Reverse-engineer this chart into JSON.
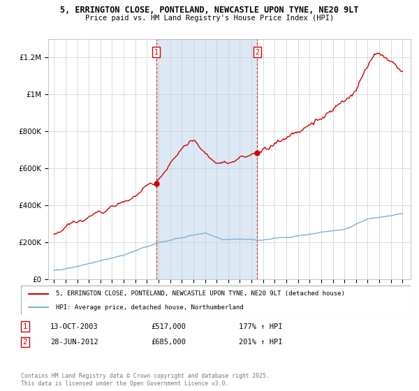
{
  "title_line1": "5, ERRINGTON CLOSE, PONTELAND, NEWCASTLE UPON TYNE, NE20 9LT",
  "title_line2": "Price paid vs. HM Land Registry's House Price Index (HPI)",
  "legend_property": "5, ERRINGTON CLOSE, PONTELAND, NEWCASTLE UPON TYNE, NE20 9LT (detached house)",
  "legend_hpi": "HPI: Average price, detached house, Northumberland",
  "annotation1_label": "1",
  "annotation1_date": "13-OCT-2003",
  "annotation1_price": "£517,000",
  "annotation1_hpi": "177% ↑ HPI",
  "annotation2_label": "2",
  "annotation2_date": "28-JUN-2012",
  "annotation2_price": "£685,000",
  "annotation2_hpi": "201% ↑ HPI",
  "sale1_year": 2003.79,
  "sale1_price": 517000,
  "sale2_year": 2012.49,
  "sale2_price": 685000,
  "footer": "Contains HM Land Registry data © Crown copyright and database right 2025.\nThis data is licensed under the Open Government Licence v3.0.",
  "property_color": "#cc0000",
  "hpi_color": "#7ab0d4",
  "shade_color": "#dce9f5",
  "vline_color": "#cc0000",
  "ylim_max": 1300000,
  "ylim_min": 0
}
